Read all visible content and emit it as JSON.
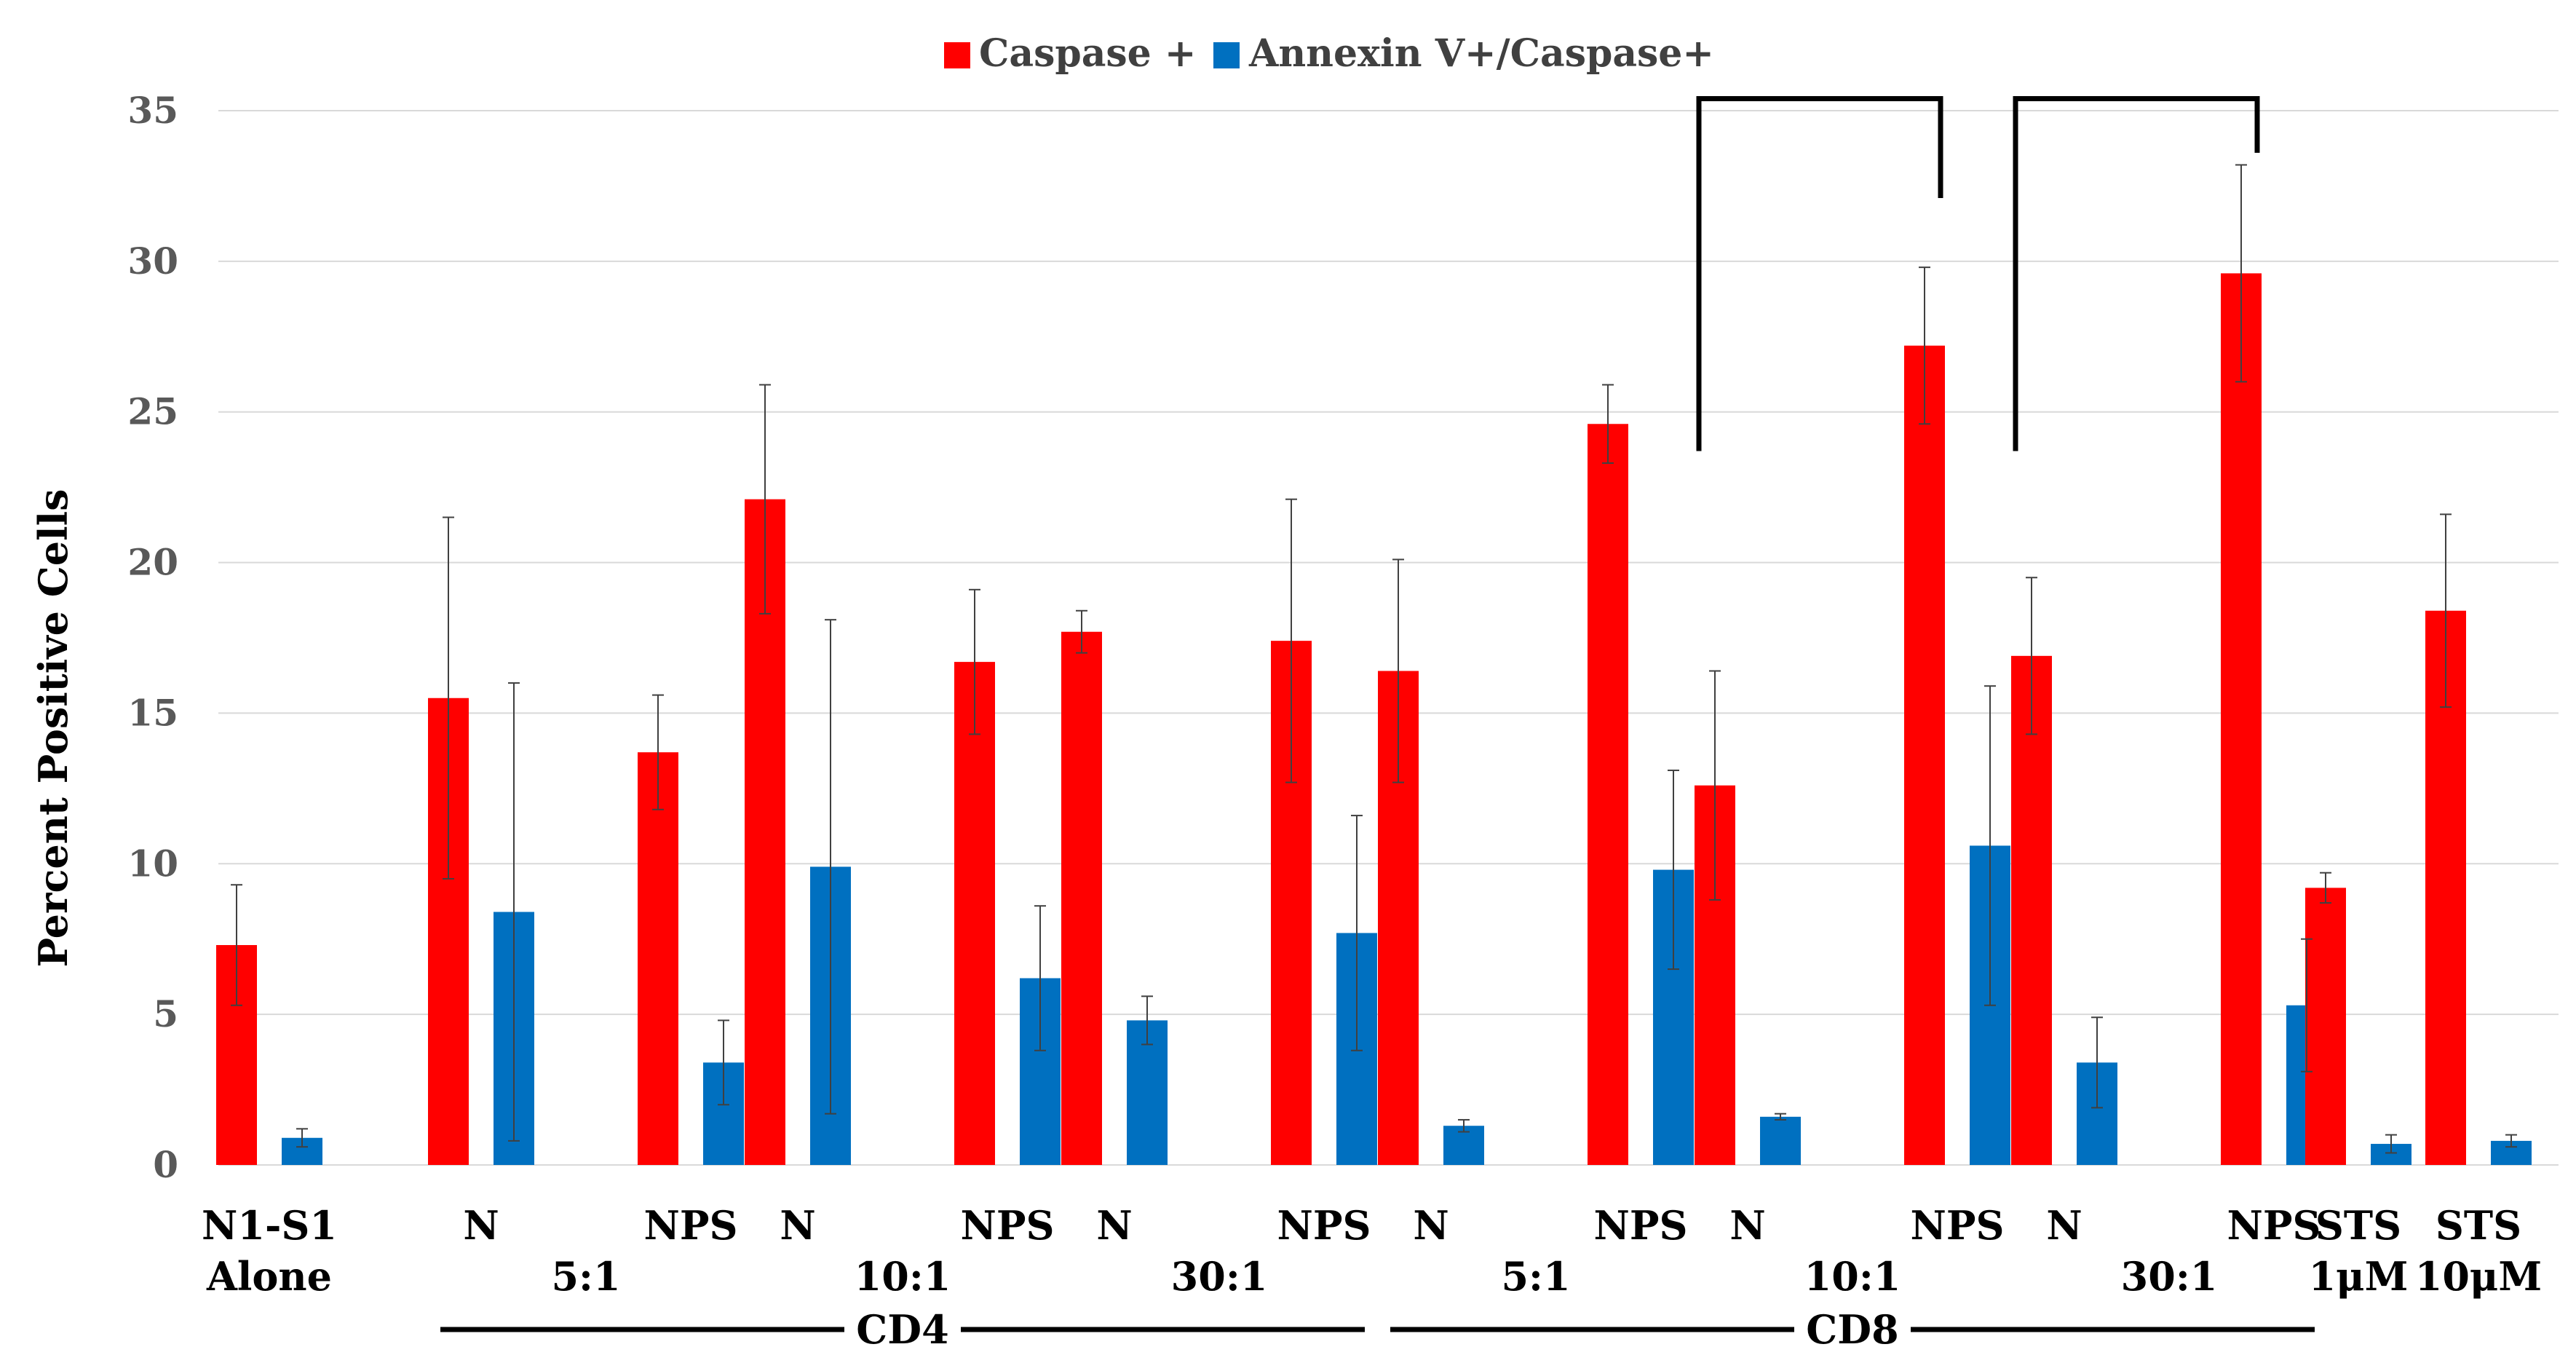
{
  "chart_data": {
    "type": "bar",
    "title": "",
    "ylabel": "Percent Positive Cells",
    "xlabel": "",
    "ylim": [
      0,
      35
    ],
    "yticks": [
      0,
      5,
      10,
      15,
      20,
      25,
      30,
      35
    ],
    "grid": true,
    "legend_position": "top-center",
    "colors": {
      "caspase": "#FF0000",
      "annexin": "#0070C0",
      "grid": "#d9d9d9",
      "bracket": "#000000"
    },
    "legend": [
      "Caspase +",
      "Annexin V+/Caspase+"
    ],
    "categories": [
      {
        "label1": "N1-S1",
        "label2": "Alone",
        "subs": [
          {
            "label": "",
            "caspase": 7.3,
            "caspase_err": 2.0,
            "annexin": 0.9,
            "annexin_err": 0.3
          }
        ]
      },
      {
        "label1": "",
        "label2": "5:1",
        "subs": [
          {
            "label": "N",
            "caspase": 15.5,
            "caspase_err": 6.0,
            "annexin": 8.4,
            "annexin_err": 7.6
          },
          {
            "label": "NPS",
            "caspase": 13.7,
            "caspase_err": 1.9,
            "annexin": 3.4,
            "annexin_err": 1.4
          }
        ]
      },
      {
        "label1": "",
        "label2": "10:1",
        "subs": [
          {
            "label": "N",
            "caspase": 22.1,
            "caspase_err": 3.8,
            "annexin": 9.9,
            "annexin_err": 8.2
          },
          {
            "label": "NPS",
            "caspase": 16.7,
            "caspase_err": 2.4,
            "annexin": 6.2,
            "annexin_err": 2.4
          }
        ]
      },
      {
        "label1": "",
        "label2": "30:1",
        "subs": [
          {
            "label": "N",
            "caspase": 17.7,
            "caspase_err": 0.7,
            "annexin": 4.8,
            "annexin_err": 0.8
          },
          {
            "label": "NPS",
            "caspase": 17.4,
            "caspase_err": 4.7,
            "annexin": 7.7,
            "annexin_err": 3.9
          }
        ]
      },
      {
        "label1": "",
        "label2": "5:1",
        "subs": [
          {
            "label": "N",
            "caspase": 16.4,
            "caspase_err": 3.7,
            "annexin": 1.3,
            "annexin_err": 0.2
          },
          {
            "label": "NPS",
            "caspase": 24.6,
            "caspase_err": 1.3,
            "annexin": 9.8,
            "annexin_err": 3.3
          }
        ]
      },
      {
        "label1": "",
        "label2": "10:1",
        "subs": [
          {
            "label": "N",
            "caspase": 12.6,
            "caspase_err": 3.8,
            "annexin": 1.6,
            "annexin_err": 0.1
          },
          {
            "label": "NPS",
            "caspase": 27.2,
            "caspase_err": 2.6,
            "annexin": 10.6,
            "annexin_err": 5.3
          }
        ]
      },
      {
        "label1": "",
        "label2": "30:1",
        "subs": [
          {
            "label": "N",
            "caspase": 16.9,
            "caspase_err": 2.6,
            "annexin": 3.4,
            "annexin_err": 1.5
          },
          {
            "label": "NPS",
            "caspase": 29.6,
            "caspase_err": 3.6,
            "annexin": 5.3,
            "annexin_err": 2.2
          }
        ]
      },
      {
        "label1": "STS",
        "label2": "1μM",
        "subs": [
          {
            "label": "",
            "caspase": 9.2,
            "caspase_err": 0.5,
            "annexin": 0.7,
            "annexin_err": 0.3
          }
        ]
      },
      {
        "label1": "STS",
        "label2": "10μM",
        "subs": [
          {
            "label": "",
            "caspase": 18.4,
            "caspase_err": 3.2,
            "annexin": 0.8,
            "annexin_err": 0.2
          }
        ]
      }
    ],
    "group_labels": [
      {
        "label": "CD4",
        "from_category": 1,
        "to_category": 3
      },
      {
        "label": "CD8",
        "from_category": 4,
        "to_category": 6
      }
    ],
    "significance_brackets": [
      {
        "category": 5,
        "from_sub": 0,
        "to_sub": 1,
        "left_y": 23.7,
        "top_y": 35.4,
        "right_y": 32.1
      },
      {
        "category": 6,
        "from_sub": 0,
        "to_sub": 1,
        "left_y": 23.7,
        "top_y": 35.4,
        "right_y": 33.6
      }
    ]
  }
}
